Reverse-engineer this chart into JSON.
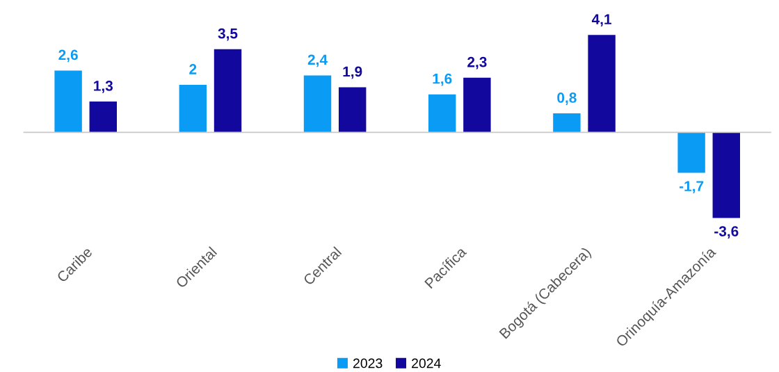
{
  "chart_data": {
    "type": "bar",
    "categories": [
      "Caribe",
      "Oriental",
      "Central",
      "Pacífica",
      "Bogotá (Cabecera)",
      "Orinoquía-Amazonía"
    ],
    "series": [
      {
        "name": "2023",
        "color": "#0a9cf5",
        "values": [
          2.6,
          2,
          2.4,
          1.6,
          0.8,
          -1.7
        ],
        "value_labels": [
          "2,6",
          "2",
          "2,4",
          "1,6",
          "0,8",
          "-1,7"
        ]
      },
      {
        "name": "2024",
        "color": "#12089e",
        "values": [
          1.3,
          3.5,
          1.9,
          2.3,
          4.1,
          -3.6
        ],
        "value_labels": [
          "1,3",
          "3,5",
          "1,9",
          "2,3",
          "4,1",
          "-3,6"
        ]
      }
    ],
    "legend": "bottom",
    "grid": false
  }
}
